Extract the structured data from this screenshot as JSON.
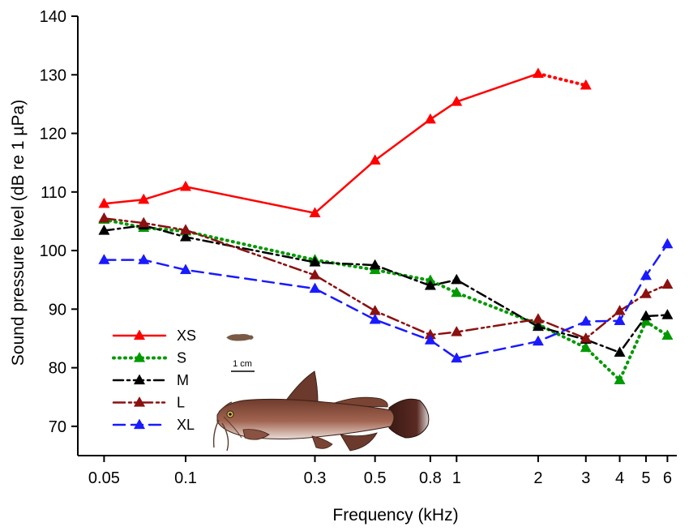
{
  "chart_data": {
    "type": "line",
    "title": "",
    "xlabel": "Frequency (kHz)",
    "ylabel": "Sound pressure level (dB re 1 µPa)",
    "x_scale": "log",
    "xlim": [
      0.04,
      6.5
    ],
    "ylim": [
      65,
      140
    ],
    "x_ticks": [
      0.05,
      0.1,
      0.3,
      0.5,
      0.8,
      1,
      2,
      3,
      4,
      5,
      6
    ],
    "x_tick_labels": [
      "0.05",
      "0.1",
      "0.3",
      "0.5",
      "0.8",
      "1",
      "2",
      "3",
      "4",
      "5",
      "6"
    ],
    "y_ticks": [
      70,
      80,
      90,
      100,
      110,
      120,
      130,
      140
    ],
    "y_tick_labels": [
      "70",
      "80",
      "90",
      "100",
      "110",
      "120",
      "130",
      "140"
    ],
    "grid": false,
    "legend_position": "bottom-left",
    "scale_bar_label": "1 cm",
    "series": [
      {
        "name": "XS",
        "color": "#ff0000",
        "dash": "solid",
        "dotted_tail": true,
        "x": [
          0.05,
          0.07,
          0.1,
          0.3,
          0.5,
          0.8,
          1,
          2,
          3
        ],
        "y": [
          108,
          108.7,
          110.9,
          106.4,
          115.4,
          122.4,
          125.4,
          130.2,
          128.2
        ]
      },
      {
        "name": "S",
        "color": "#009900",
        "dash": "dotted",
        "x": [
          0.05,
          0.07,
          0.1,
          0.3,
          0.5,
          0.8,
          1,
          2,
          3,
          4,
          5,
          6
        ],
        "y": [
          105.3,
          103.9,
          103.3,
          98.4,
          96.7,
          94.9,
          92.8,
          87.4,
          83.4,
          77.9,
          87.9,
          85.5
        ]
      },
      {
        "name": "M",
        "color": "#000000",
        "dash": "dashdot",
        "x": [
          0.05,
          0.07,
          0.1,
          0.3,
          0.5,
          0.8,
          1,
          2,
          3,
          4,
          5,
          6
        ],
        "y": [
          103.4,
          104.3,
          102.3,
          98.0,
          97.5,
          94.0,
          95.0,
          87.0,
          84.8,
          82.6,
          88.8,
          89.0
        ]
      },
      {
        "name": "L",
        "color": "#8b1010",
        "dash": "dashdotdot",
        "x": [
          0.05,
          0.07,
          0.1,
          0.3,
          0.5,
          0.8,
          1,
          2,
          3,
          4,
          5,
          6
        ],
        "y": [
          105.5,
          104.7,
          103.5,
          95.8,
          89.7,
          85.6,
          86.1,
          88.3,
          85.0,
          89.7,
          92.6,
          94.2
        ]
      },
      {
        "name": "XL",
        "color": "#1a1aff",
        "dash": "dashed",
        "x": [
          0.05,
          0.07,
          0.1,
          0.3,
          0.5,
          0.8,
          1,
          2,
          3,
          4,
          5,
          6
        ],
        "y": [
          98.4,
          98.4,
          96.7,
          93.5,
          88.2,
          84.7,
          81.6,
          84.5,
          87.9,
          88.0,
          95.7,
          101.1
        ]
      }
    ]
  }
}
